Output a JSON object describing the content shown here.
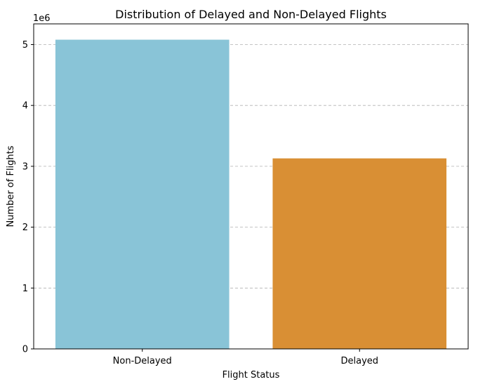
{
  "chart_data": {
    "type": "bar",
    "title": "Distribution of Delayed and Non-Delayed Flights",
    "xlabel": "Flight Status",
    "ylabel": "Number of Flights",
    "y_offset_text": "1e6",
    "categories": [
      "Non-Delayed",
      "Delayed"
    ],
    "values": [
      5080000,
      3130000
    ],
    "colors": [
      "#89c4d7",
      "#d98f34"
    ],
    "ylim": [
      0,
      5340000
    ],
    "yticks": [
      0,
      1000000,
      2000000,
      3000000,
      4000000,
      5000000
    ],
    "ytick_labels": [
      "0",
      "1",
      "2",
      "3",
      "4",
      "5"
    ],
    "grid": "y-dashed",
    "legend": "none"
  }
}
